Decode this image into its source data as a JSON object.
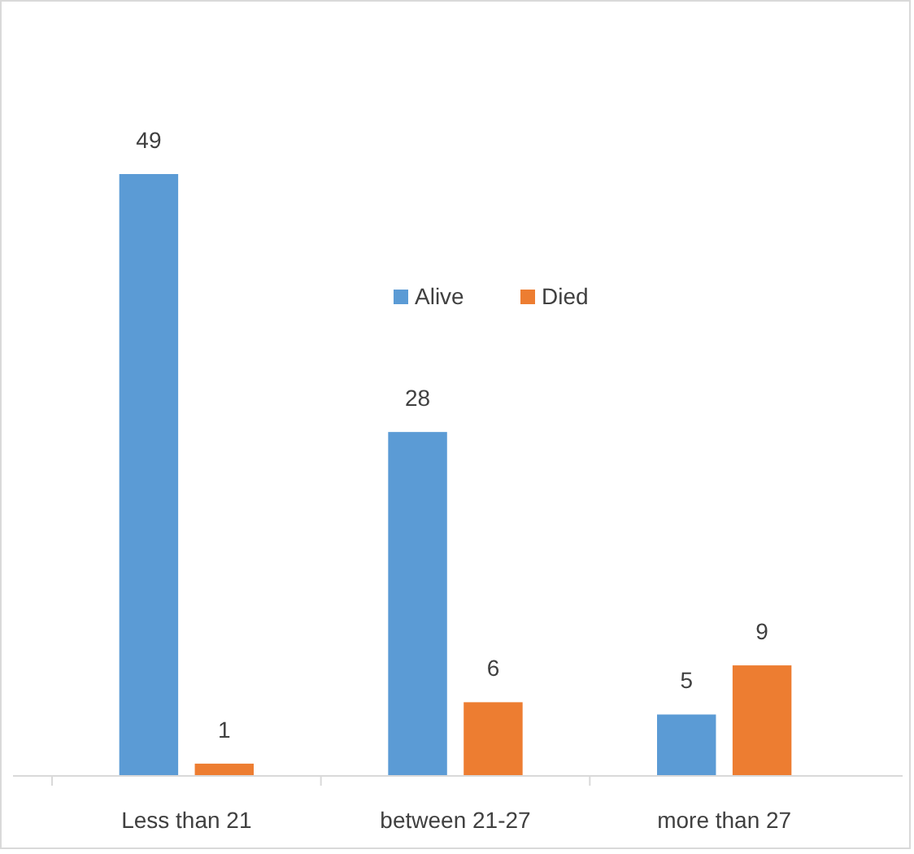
{
  "chart_data": {
    "type": "bar",
    "categories": [
      "Less than 21",
      "between 21-27",
      "more than 27"
    ],
    "series": [
      {
        "name": "Alive",
        "color": "#5b9bd5",
        "values": [
          49,
          28,
          5
        ]
      },
      {
        "name": "Died",
        "color": "#ed7d31",
        "values": [
          1,
          6,
          9
        ]
      }
    ],
    "data_labels": true,
    "legend": "top"
  }
}
